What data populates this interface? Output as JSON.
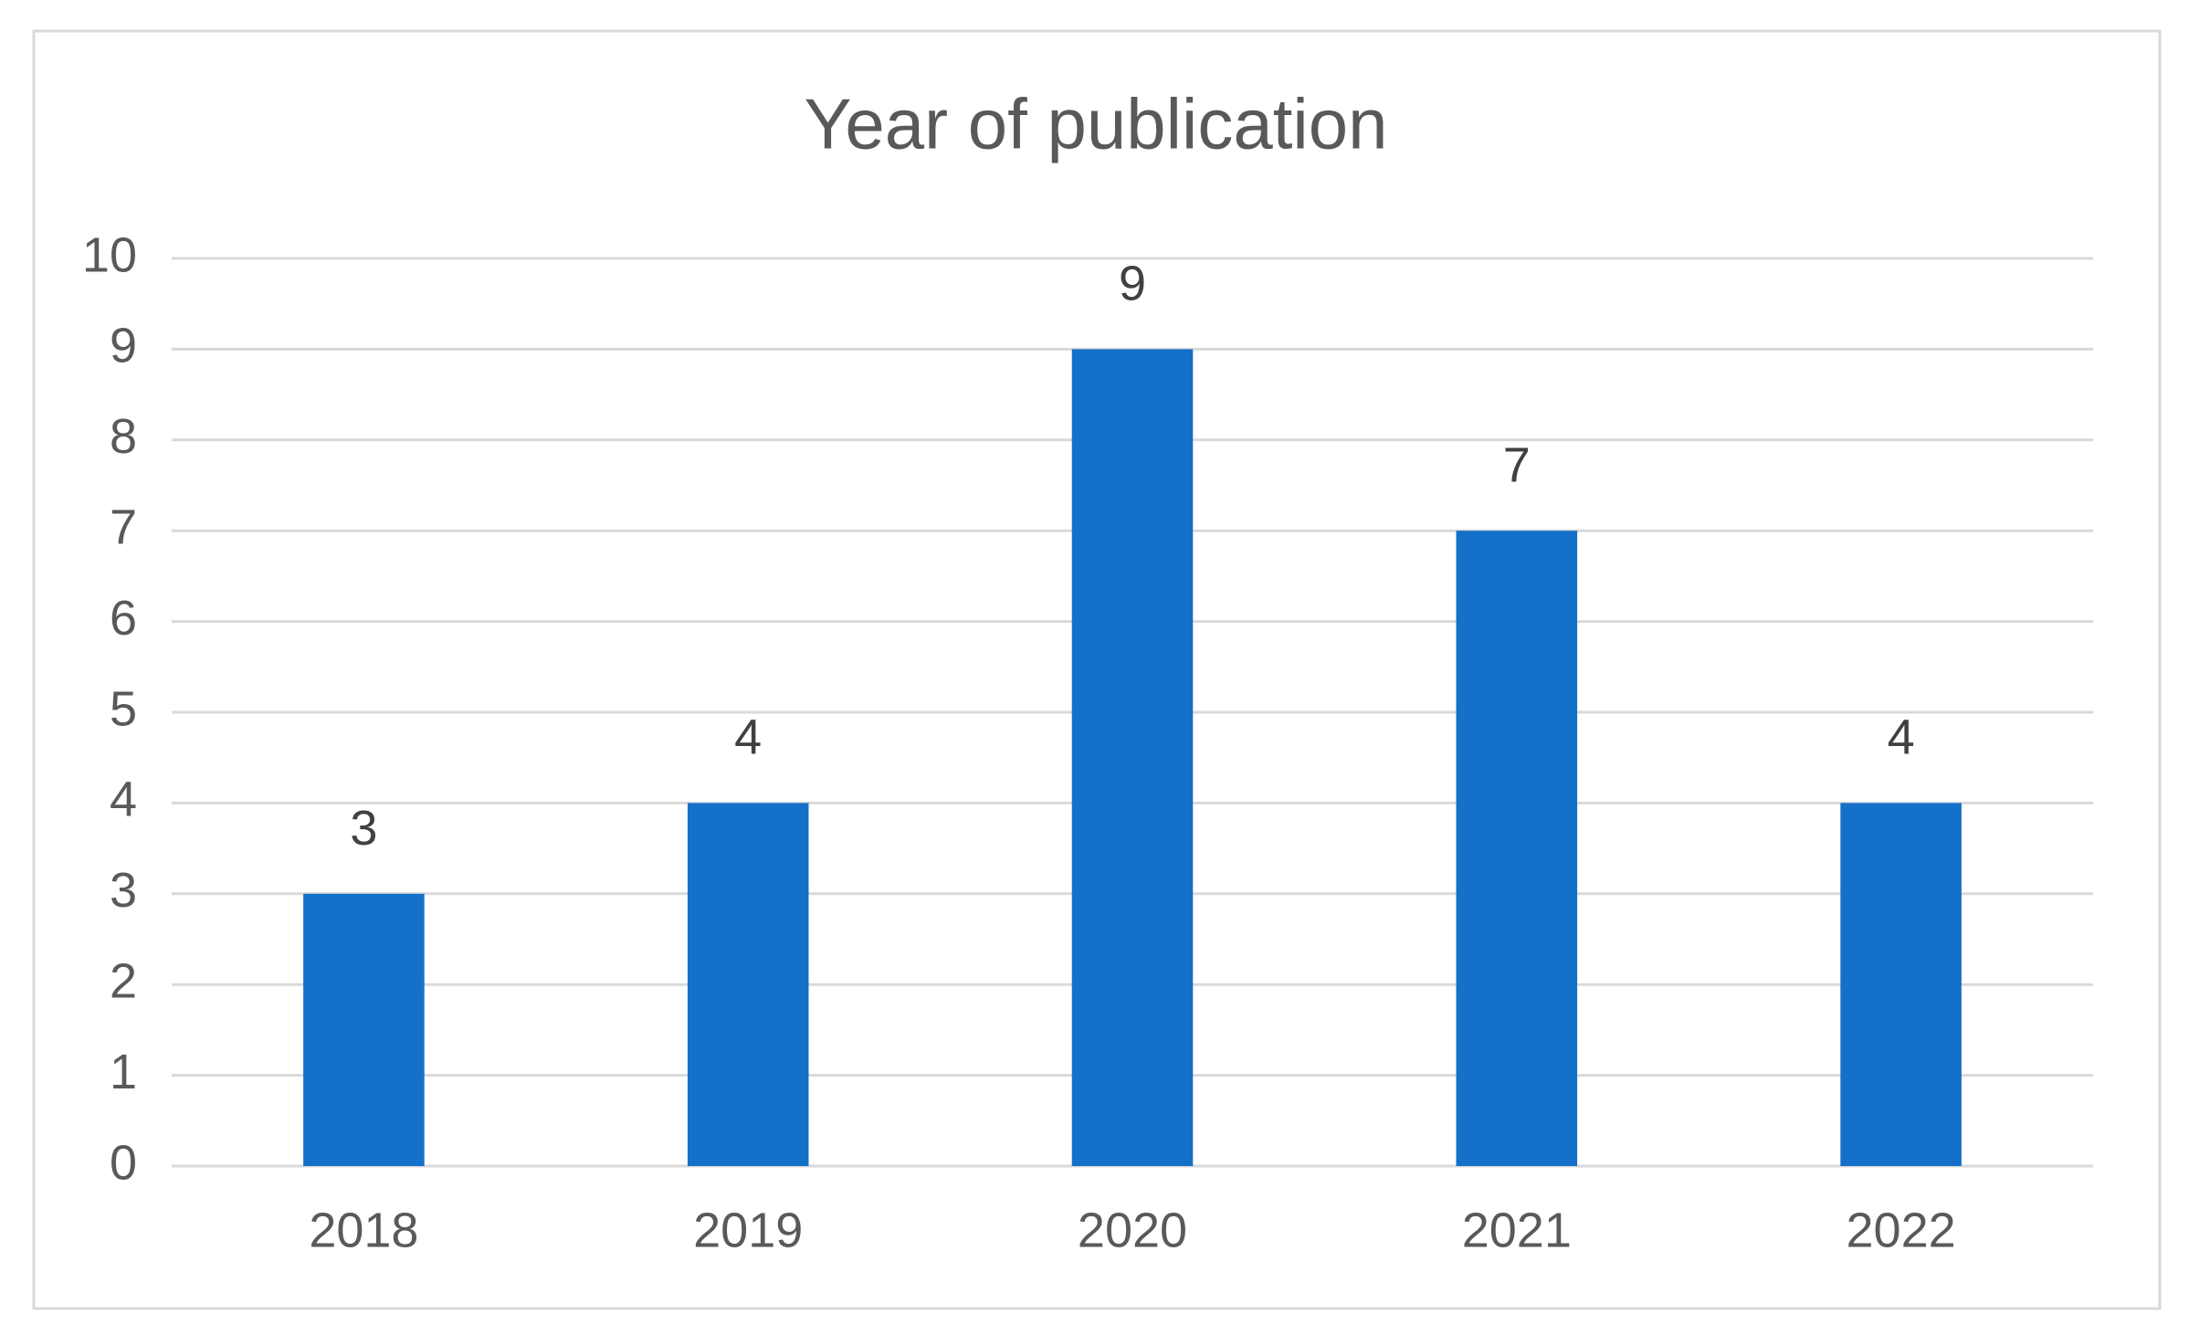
{
  "chart_data": {
    "type": "bar",
    "title": "Year of publication",
    "categories": [
      "2018",
      "2019",
      "2020",
      "2021",
      "2022"
    ],
    "values": [
      3,
      4,
      9,
      7,
      4
    ],
    "color": "#1470c8",
    "ylim": [
      0,
      10
    ],
    "yticks": [
      0,
      1,
      2,
      3,
      4,
      5,
      6,
      7,
      8,
      9,
      10
    ],
    "grid": true,
    "data_labels": true
  }
}
